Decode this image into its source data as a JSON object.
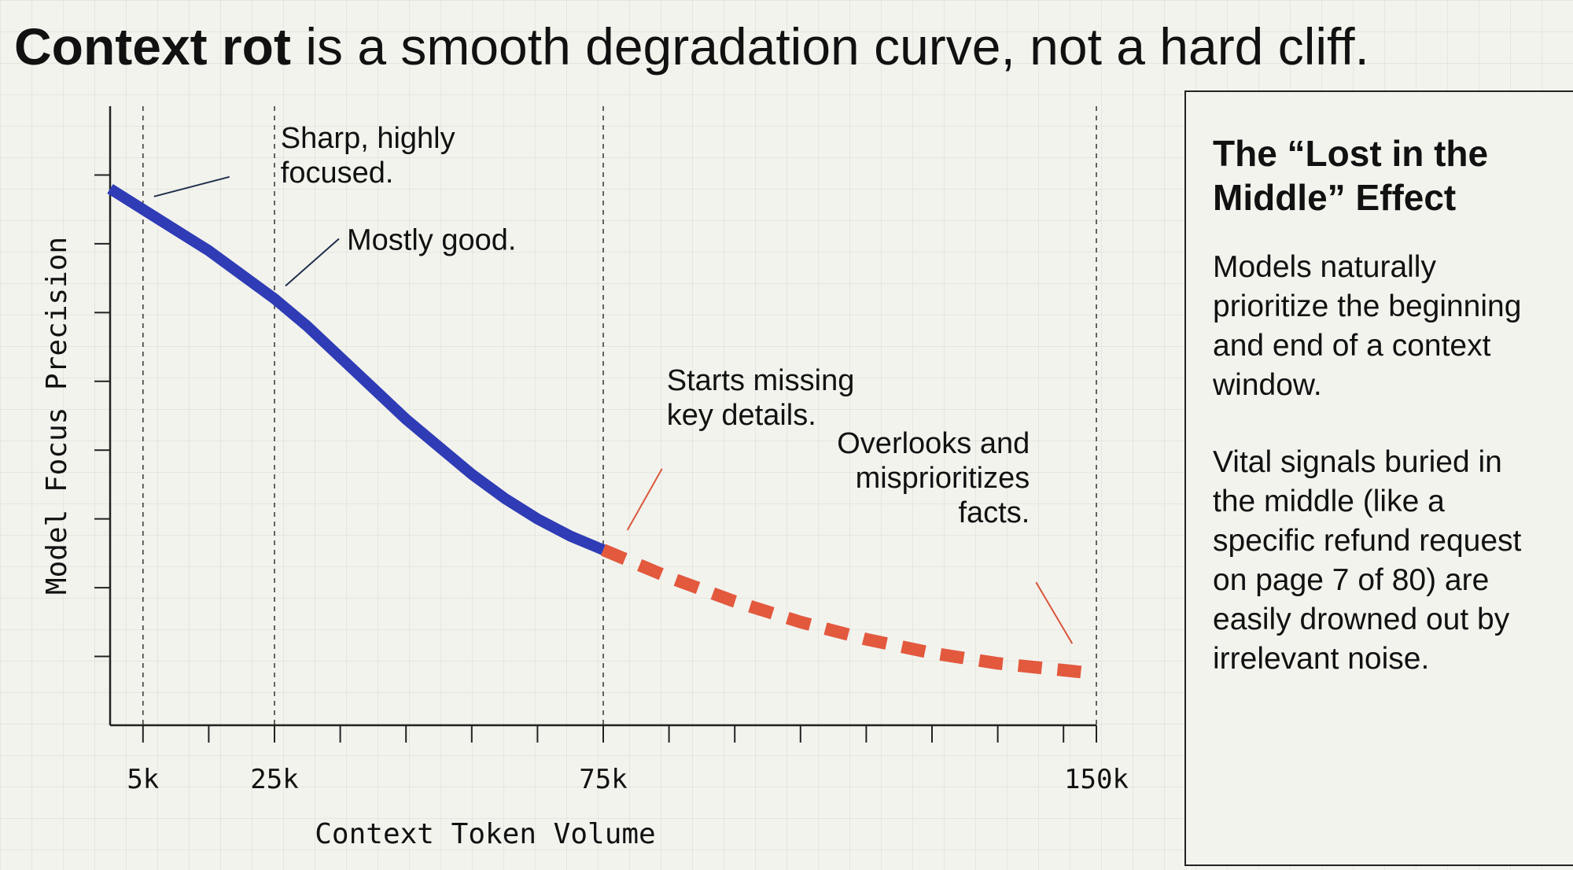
{
  "title": {
    "bold": "Context rot",
    "rest": " is a smooth degradation curve, not a hard cliff."
  },
  "chart_data": {
    "type": "line",
    "xlabel": "Context Token Volume",
    "ylabel": "Model Focus Precision",
    "xlim": [
      0,
      150
    ],
    "ylim": [
      0,
      9
    ],
    "y_tick_values": [
      1,
      2,
      3,
      4,
      5,
      6,
      7,
      8
    ],
    "y_tick_labels_shown": false,
    "x_ticks": [
      {
        "value": 5,
        "label": "5k"
      },
      {
        "value": 15,
        "label": ""
      },
      {
        "value": 25,
        "label": "25k"
      },
      {
        "value": 35,
        "label": ""
      },
      {
        "value": 45,
        "label": ""
      },
      {
        "value": 55,
        "label": ""
      },
      {
        "value": 65,
        "label": ""
      },
      {
        "value": 75,
        "label": "75k"
      },
      {
        "value": 85,
        "label": ""
      },
      {
        "value": 95,
        "label": ""
      },
      {
        "value": 105,
        "label": ""
      },
      {
        "value": 115,
        "label": ""
      },
      {
        "value": 125,
        "label": ""
      },
      {
        "value": 135,
        "label": ""
      },
      {
        "value": 145,
        "label": ""
      },
      {
        "value": 150,
        "label": "150k"
      }
    ],
    "reference_lines_x": [
      5,
      25,
      75,
      150
    ],
    "grid": false,
    "series": [
      {
        "style": "solid",
        "color": "#2f3cb5",
        "x": [
          0,
          5,
          10,
          15,
          20,
          25,
          30,
          35,
          40,
          45,
          50,
          55,
          60,
          65,
          70,
          75
        ],
        "y": [
          7.8,
          7.5,
          7.2,
          6.9,
          6.55,
          6.2,
          5.8,
          5.35,
          4.9,
          4.45,
          4.05,
          3.65,
          3.3,
          3.0,
          2.75,
          2.55
        ]
      },
      {
        "style": "dashed",
        "color": "#e2593e",
        "x": [
          75,
          85,
          95,
          105,
          115,
          125,
          135,
          145,
          150
        ],
        "y": [
          2.55,
          2.15,
          1.8,
          1.5,
          1.25,
          1.05,
          0.9,
          0.8,
          0.75
        ]
      }
    ],
    "annotations": [
      {
        "lines": [
          "Sharp, highly",
          "focused."
        ],
        "x": 5,
        "y": 7.55,
        "color": "#1f2f4a",
        "align": "start"
      },
      {
        "lines": [
          "Mostly good."
        ],
        "x": 25,
        "y": 6.25,
        "color": "#1f2f4a",
        "align": "start"
      },
      {
        "lines": [
          "Starts missing",
          "key details."
        ],
        "x": 77,
        "y": 2.7,
        "color": "#d9583c",
        "align": "start"
      },
      {
        "lines": [
          "Overlooks and",
          "misprioritizes",
          "facts."
        ],
        "x": 148,
        "y": 1.05,
        "color": "#d9583c",
        "align": "end"
      }
    ]
  },
  "panel": {
    "heading": "The “Lost in the Middle” Effect",
    "paragraph_1": "Models naturally prioritize the beginning and end of a context window.",
    "paragraph_2": "Vital signals buried in the middle (like a specific refund request on page 7 of 80) are easily drowned out by irrelevant noise."
  }
}
